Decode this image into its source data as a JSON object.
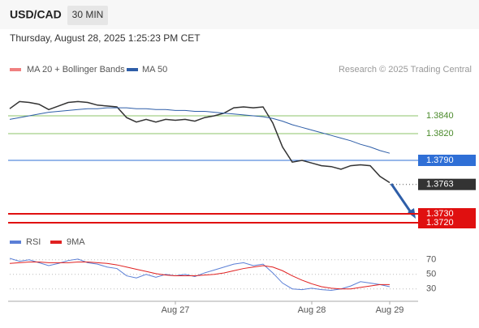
{
  "header": {
    "symbol": "USD/CAD",
    "interval": "30 MIN",
    "datetime": "Thursday, August 28, 2025 1:25:23 PM CET"
  },
  "legend": {
    "ma20": "MA 20 + Bollinger Bands",
    "ma50": "MA 50",
    "credit": "Research © 2025 Trading Central"
  },
  "chart_data": [
    {
      "type": "line",
      "categories": [
        null,
        null,
        null,
        null,
        null,
        null,
        null,
        null,
        null,
        null,
        null,
        null,
        null,
        null,
        null,
        null,
        null,
        "Aug 27",
        null,
        null,
        null,
        null,
        null,
        null,
        null,
        null,
        null,
        null,
        null,
        null,
        null,
        "Aug 28",
        null,
        null,
        null,
        null,
        null,
        null,
        null,
        "Aug 29"
      ],
      "ylim": [
        1.371,
        1.388
      ],
      "series": [
        {
          "name": "Price",
          "color": "#333333",
          "values": [
            1.3848,
            1.3856,
            1.3855,
            1.3853,
            1.3847,
            1.3851,
            1.3855,
            1.3856,
            1.3855,
            1.3852,
            1.3851,
            1.385,
            1.3838,
            1.3833,
            1.3836,
            1.3833,
            1.3836,
            1.3835,
            1.3836,
            1.3834,
            1.3838,
            1.384,
            1.3843,
            1.3849,
            1.385,
            1.3849,
            1.385,
            1.3832,
            1.3805,
            1.3788,
            1.379,
            1.3787,
            1.3784,
            1.3783,
            1.378,
            1.3784,
            1.3785,
            1.3784,
            1.3772,
            1.3765
          ]
        },
        {
          "name": "MA 50",
          "color": "#2e5ea8",
          "values": [
            1.3836,
            1.3838,
            1.384,
            1.3842,
            1.3844,
            1.3845,
            1.3846,
            1.3847,
            1.3848,
            1.3848,
            1.3849,
            1.3849,
            1.3849,
            1.3848,
            1.3848,
            1.3847,
            1.3847,
            1.3846,
            1.3846,
            1.3845,
            1.3845,
            1.3844,
            1.3843,
            1.3842,
            1.3841,
            1.384,
            1.3839,
            1.3837,
            1.3834,
            1.383,
            1.3827,
            1.3824,
            1.3821,
            1.3818,
            1.3815,
            1.3812,
            1.3808,
            1.3805,
            1.3801,
            1.3798
          ]
        }
      ],
      "levels": [
        {
          "value": 1.384,
          "label": "1.3840",
          "color": "#8cc56a",
          "box": false,
          "line": "solid"
        },
        {
          "value": 1.382,
          "label": "1.3820",
          "color": "#8cc56a",
          "box": false,
          "line": "solid"
        },
        {
          "value": 1.379,
          "label": "1.3790",
          "color": "#2f6fd6",
          "box": true,
          "line": "solid"
        },
        {
          "value": 1.3763,
          "label": "1.3763",
          "color": "#333333",
          "box": true,
          "line": "dotted"
        },
        {
          "value": 1.373,
          "label": "1.3730",
          "color": "#e01010",
          "box": true,
          "line": "solid"
        },
        {
          "value": 1.372,
          "label": "1.3720",
          "color": "#e01010",
          "box": true,
          "line": "solid"
        }
      ]
    },
    {
      "type": "line",
      "ylim": [
        13,
        82
      ],
      "yticks": [
        70,
        50,
        30
      ],
      "series": [
        {
          "name": "RSI",
          "color": "#5b7fd6",
          "values": [
            72,
            68,
            70,
            66,
            62,
            65,
            69,
            71,
            66,
            64,
            60,
            58,
            48,
            45,
            50,
            46,
            50,
            48,
            50,
            47,
            52,
            56,
            60,
            64,
            66,
            62,
            64,
            52,
            38,
            30,
            29,
            31,
            29,
            28,
            30,
            34,
            40,
            38,
            36,
            33
          ]
        },
        {
          "name": "9MA",
          "color": "#e02020",
          "values": [
            65,
            66,
            67,
            67,
            66,
            66,
            66,
            67,
            67,
            66,
            65,
            63,
            60,
            57,
            54,
            51,
            49,
            48,
            48,
            48,
            49,
            50,
            52,
            55,
            58,
            60,
            62,
            60,
            55,
            48,
            42,
            37,
            33,
            31,
            30,
            30,
            32,
            34,
            36,
            36
          ]
        }
      ]
    }
  ]
}
